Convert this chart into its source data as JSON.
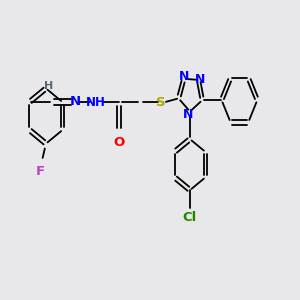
{
  "bg_color": "#e8e8ea",
  "fig_size": [
    3.0,
    3.0
  ],
  "dpi": 100,
  "bond_color": "#000000",
  "bond_lw": 1.3,
  "xlim": [
    0,
    10
  ],
  "ylim": [
    -3.5,
    3.5
  ],
  "F_color": "#bb44bb",
  "O_color": "#ff0000",
  "N_color": "#0000ff",
  "S_color": "#aaaa00",
  "Cl_color": "#228800",
  "H_color": "#556677",
  "C_color": "#000000"
}
